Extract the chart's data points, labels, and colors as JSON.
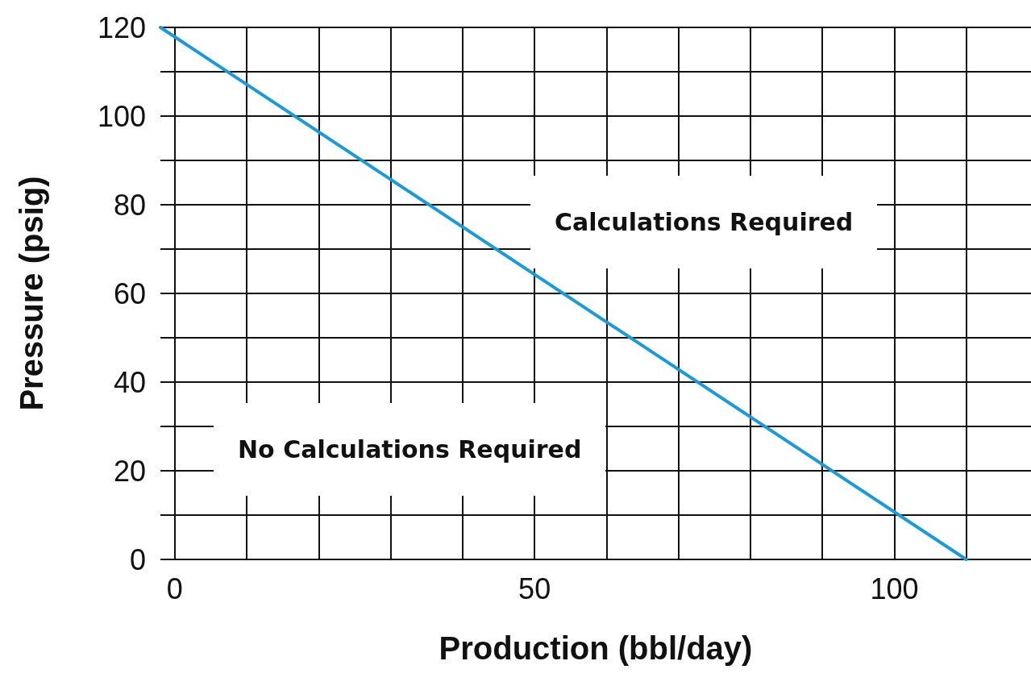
{
  "chart_data": {
    "type": "line",
    "xlabel": "Production (bbl/day)",
    "ylabel": "Pressure (psig)",
    "x": [
      -2,
      110
    ],
    "series": [
      {
        "color": "#1a9ad6",
        "values": [
          120,
          0
        ]
      }
    ],
    "xlim": [
      -2,
      119
    ],
    "xticks": [
      0,
      {
        "value": 10,
        "label": null
      },
      {
        "value": 20,
        "label": null
      },
      {
        "value": 30,
        "label": null
      },
      {
        "value": 40,
        "label": null
      },
      50,
      {
        "value": 60,
        "label": null
      },
      {
        "value": 70,
        "label": null
      },
      {
        "value": 80,
        "label": null
      },
      {
        "value": 90,
        "label": null
      },
      100,
      {
        "value": 110,
        "label": null
      }
    ],
    "ylim": [
      0,
      120
    ],
    "yticks": [
      0,
      {
        "value": 10,
        "label": null
      },
      20,
      {
        "value": 30,
        "label": null
      },
      40,
      {
        "value": 50,
        "label": null
      },
      60,
      {
        "value": 70,
        "label": null
      },
      80,
      {
        "value": 90,
        "label": null
      },
      100,
      {
        "value": 110,
        "label": null
      },
      120
    ],
    "grid": true,
    "marker": "none",
    "line_style": "solid",
    "annotations": [
      "Calculations Required",
      "No Calculations Required"
    ]
  }
}
